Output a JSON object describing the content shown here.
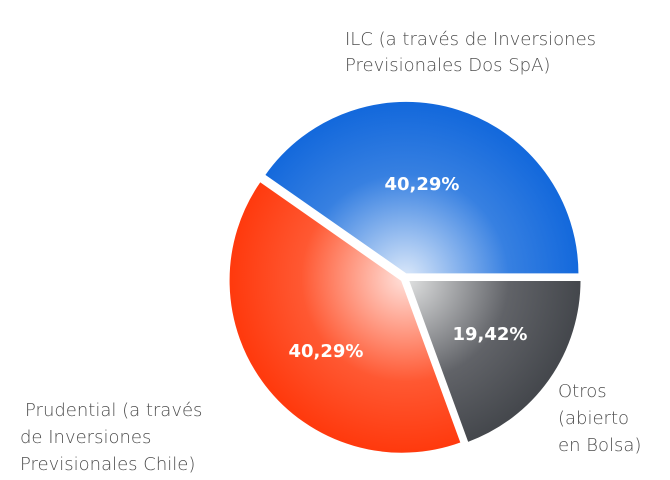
{
  "chart_data": {
    "type": "pie",
    "categories": [
      [
        "ILC (a través de Inversiones",
        "Previsionales Dos SpA)"
      ],
      [
        "Prudential (a través",
        "de Inversiones",
        "Previsionales Chile)"
      ],
      [
        "Otros",
        "(abierto",
        "en Bolsa)"
      ]
    ],
    "values": [
      40.29,
      40.29,
      19.42
    ],
    "value_labels": [
      "40,29%",
      "40,29%",
      "19,42%"
    ],
    "colors": [
      "#1469dc",
      "#ff3a0e",
      "#45484d"
    ]
  }
}
